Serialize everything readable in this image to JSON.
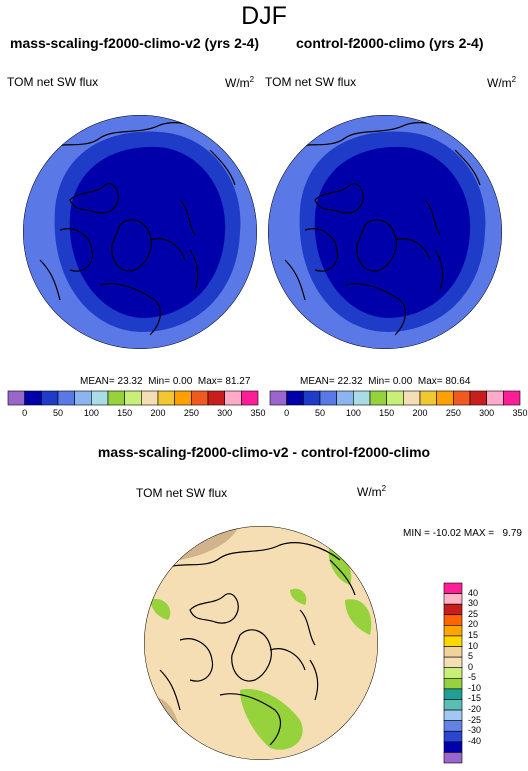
{
  "figure_title": "DJF",
  "panels": [
    {
      "title": "mass-scaling-f2000-climo-v2 (yrs 2-4)",
      "variable": "TOM net SW flux",
      "units_base": "W/m",
      "units_sup": "2",
      "stats": {
        "mean_label": "MEAN=",
        "mean": "23.32",
        "min_label": "Min=",
        "min": "0.00",
        "max_label": "Max=",
        "max": "81.27"
      }
    },
    {
      "title": "control-f2000-climo (yrs 2-4)",
      "variable": "TOM net SW flux",
      "units_base": "W/m",
      "units_sup": "2",
      "stats": {
        "mean_label": "MEAN=",
        "mean": "22.32",
        "min_label": "Min=",
        "min": "0.00",
        "max_label": "Max=",
        "max": "80.64"
      }
    }
  ],
  "diff_panel": {
    "title": "mass-scaling-f2000-climo-v2 - control-f2000-climo",
    "variable": "TOM net SW flux",
    "units_base": "W/m",
    "units_sup": "2",
    "minmax_text": "MIN = -10.02 MAX =   9.79"
  },
  "field_colorbar": {
    "colors": [
      "#9966cc",
      "#0000aa",
      "#1e3cc8",
      "#5a78e6",
      "#8cb4f0",
      "#aadce6",
      "#96d23c",
      "#c8f078",
      "#f5deb3",
      "#f0c832",
      "#ffa000",
      "#f05a1e",
      "#c81e1e",
      "#ffaac8",
      "#ff1e96"
    ],
    "labels": [
      "0",
      "50",
      "100",
      "150",
      "200",
      "250",
      "300",
      "350"
    ]
  },
  "diff_colorbar": {
    "colors": [
      "#9966cc",
      "#0000aa",
      "#2846d2",
      "#6482e6",
      "#a0c8f0",
      "#5abeb4",
      "#1ea096",
      "#96d23c",
      "#c8f078",
      "#f5deb3",
      "#f0d29b",
      "#ffd700",
      "#ffa500",
      "#ff6400",
      "#c81e1e",
      "#ffb4c8",
      "#ff1e96"
    ],
    "labels": [
      "40",
      "30",
      "25",
      "20",
      "15",
      "10",
      "5",
      "0",
      "-5",
      "-10",
      "-15",
      "-20",
      "-25",
      "-30",
      "-40"
    ]
  }
}
